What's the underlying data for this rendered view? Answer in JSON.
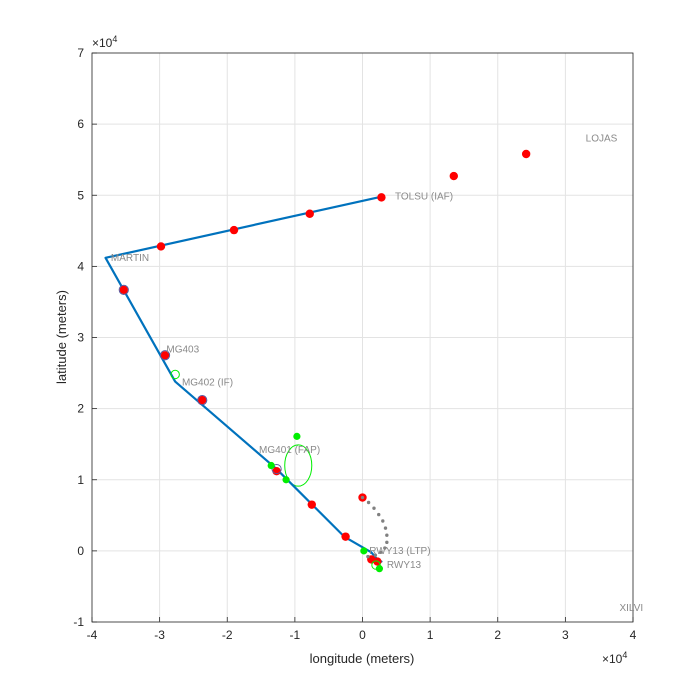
{
  "chart_data": {
    "type": "scatter",
    "title": "",
    "xlabel": "longitude (meters)",
    "ylabel": "latitude  (meters)",
    "xlim": [
      -4,
      4
    ],
    "ylim": [
      -1,
      7
    ],
    "x_exponent_label": "×10",
    "x_exponent": "4",
    "y_exponent_label": "×10",
    "y_exponent": "4",
    "x_ticks": [
      "-4",
      "-3",
      "-2",
      "-1",
      "0",
      "1",
      "2",
      "3",
      "4"
    ],
    "y_ticks": [
      "-1",
      "0",
      "1",
      "2",
      "3",
      "4",
      "5",
      "6",
      "7"
    ],
    "grid": true,
    "colors": {
      "route": "#0072bd",
      "red_points": "#ff0000",
      "green_points": "#00ee00",
      "grey_points": "#808080",
      "labels": "#8a8a8a",
      "axes": "#262626",
      "grid": "#e3e3e3"
    },
    "route_line": {
      "x": [
        0.28,
        -3.8,
        -2.77,
        -1.27,
        -0.27,
        0.13,
        0.22,
        0.28,
        0.18
      ],
      "y": [
        4.98,
        4.12,
        2.38,
        1.15,
        0.2,
        -0.02,
        -0.12,
        -0.15,
        -0.14
      ]
    },
    "waypoint_labels": [
      {
        "text": "TOLSU (IAF)",
        "x": 0.48,
        "y": 4.98
      },
      {
        "text": "MARTIN",
        "x": -3.72,
        "y": 4.12
      },
      {
        "text": "MG403",
        "x": -2.9,
        "y": 2.83
      },
      {
        "text": "MG402 (IF)",
        "x": -2.67,
        "y": 2.37
      },
      {
        "text": "MG401 (FAP)",
        "x": -1.53,
        "y": 1.42
      },
      {
        "text": "RWY13 (LTP)",
        "x": 0.1,
        "y": 0.0
      },
      {
        "text": "RWY13",
        "x": 0.36,
        "y": -0.2
      },
      {
        "text": "LOJAS",
        "x": 3.3,
        "y": 5.8
      },
      {
        "text": "XILVI",
        "x": 3.8,
        "y": -0.8
      }
    ],
    "series": [
      {
        "marker": "red-dot",
        "x": [
          2.42,
          1.35,
          0.28,
          -0.78,
          -1.9,
          -2.98,
          -3.53,
          -2.92,
          -2.37,
          -1.27,
          -0.75,
          -0.25,
          0.0,
          0.13,
          0.22
        ],
        "y": [
          5.58,
          5.27,
          4.97,
          4.74,
          4.51,
          4.28,
          3.67,
          2.75,
          2.12,
          1.12,
          0.65,
          0.2,
          0.75,
          -0.12,
          -0.15
        ]
      },
      {
        "marker": "blue-ring",
        "x": [
          -3.53,
          -2.92,
          -2.37,
          -1.27
        ],
        "y": [
          3.67,
          2.75,
          2.12,
          1.15
        ]
      },
      {
        "marker": "green-dot",
        "x": [
          -0.97,
          -1.35,
          -1.13,
          0.02,
          0.25
        ],
        "y": [
          1.61,
          1.2,
          1.0,
          0.0,
          -0.25
        ]
      },
      {
        "marker": "green-ring",
        "x": [
          -2.77,
          0.2
        ],
        "y": [
          2.48,
          -0.2
        ]
      },
      {
        "marker": "grey-arc",
        "x": [
          0.0,
          0.09,
          0.17,
          0.24,
          0.3,
          0.34,
          0.36,
          0.36,
          0.33,
          0.27,
          0.19,
          0.08
        ],
        "y": [
          0.75,
          0.68,
          0.6,
          0.51,
          0.42,
          0.32,
          0.22,
          0.12,
          0.04,
          -0.02,
          -0.06,
          -0.08
        ]
      }
    ],
    "holding_loop": {
      "cx": -0.95,
      "cy": 1.2,
      "rx": 0.2,
      "ry": 0.29
    }
  }
}
